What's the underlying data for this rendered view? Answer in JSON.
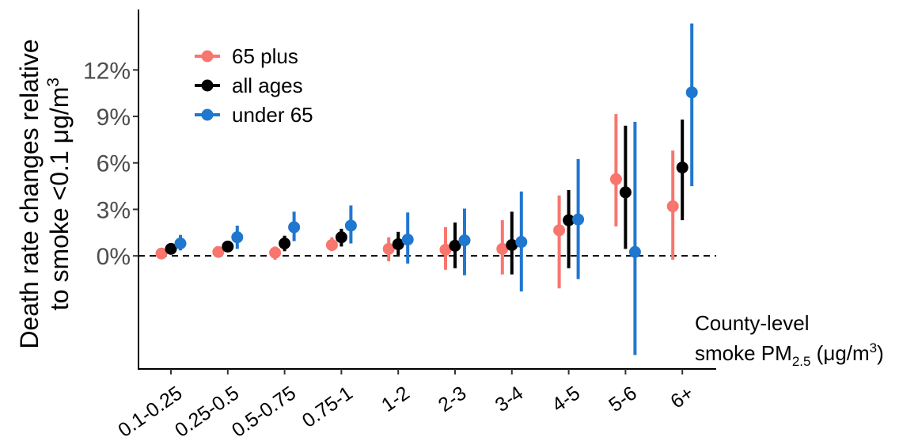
{
  "chart_data": {
    "type": "scatter",
    "subtype": "point-range",
    "categories": [
      "0.1-0.25",
      "0.25-0.5",
      "0.5-0.75",
      "0.75-1",
      "1-2",
      "2-3",
      "3-4",
      "4-5",
      "5-6",
      "6+"
    ],
    "ylabel_line1": "Death rate changes relative",
    "ylabel_line2_prefix": "to smoke <0.1 μg/m",
    "ylabel_line2_sup": "3",
    "xlabel_line1": "County-level",
    "xlabel_line2_prefix": "smoke PM",
    "xlabel_line2_sub": "2.5",
    "xlabel_line2_mid": " (μg/m",
    "xlabel_line2_sup": "3",
    "xlabel_line2_suffix": ")",
    "yticks": [
      0,
      3,
      6,
      9,
      12
    ],
    "ytick_labels": [
      "0%",
      "3%",
      "6%",
      "9%",
      "12%"
    ],
    "ylim": [
      -7.3,
      15.9
    ],
    "reference_line": 0,
    "legend_position": "top-left",
    "series": [
      {
        "name": "65 plus",
        "color": "#F8766D",
        "values": [
          0.15,
          0.25,
          0.2,
          0.7,
          0.45,
          0.4,
          0.45,
          1.65,
          4.95,
          3.2
        ],
        "lower": [
          0.0,
          0.05,
          -0.25,
          0.3,
          -0.35,
          -0.9,
          -1.2,
          -2.1,
          1.9,
          -0.25
        ],
        "upper": [
          0.3,
          0.45,
          0.6,
          1.2,
          1.2,
          1.85,
          2.3,
          3.9,
          9.15,
          6.8
        ]
      },
      {
        "name": "all ages",
        "color": "#000000",
        "values": [
          0.45,
          0.6,
          0.8,
          1.2,
          0.75,
          0.65,
          0.7,
          2.3,
          4.1,
          5.7
        ],
        "lower": [
          0.2,
          0.4,
          0.3,
          0.6,
          0.05,
          -0.8,
          -1.2,
          -0.8,
          0.45,
          2.3
        ],
        "upper": [
          0.7,
          0.85,
          1.3,
          1.75,
          1.55,
          2.15,
          2.85,
          4.25,
          8.4,
          8.8
        ]
      },
      {
        "name": "under 65",
        "color": "#1F77D0",
        "values": [
          0.8,
          1.2,
          1.85,
          1.95,
          1.05,
          1.0,
          0.9,
          2.35,
          0.25,
          10.55
        ],
        "lower": [
          0.35,
          0.45,
          0.95,
          0.8,
          -0.5,
          -1.25,
          -2.3,
          -1.5,
          -6.4,
          4.5
        ],
        "upper": [
          1.35,
          1.95,
          2.85,
          3.25,
          2.8,
          3.05,
          4.15,
          6.25,
          8.65,
          15.0
        ]
      }
    ]
  }
}
